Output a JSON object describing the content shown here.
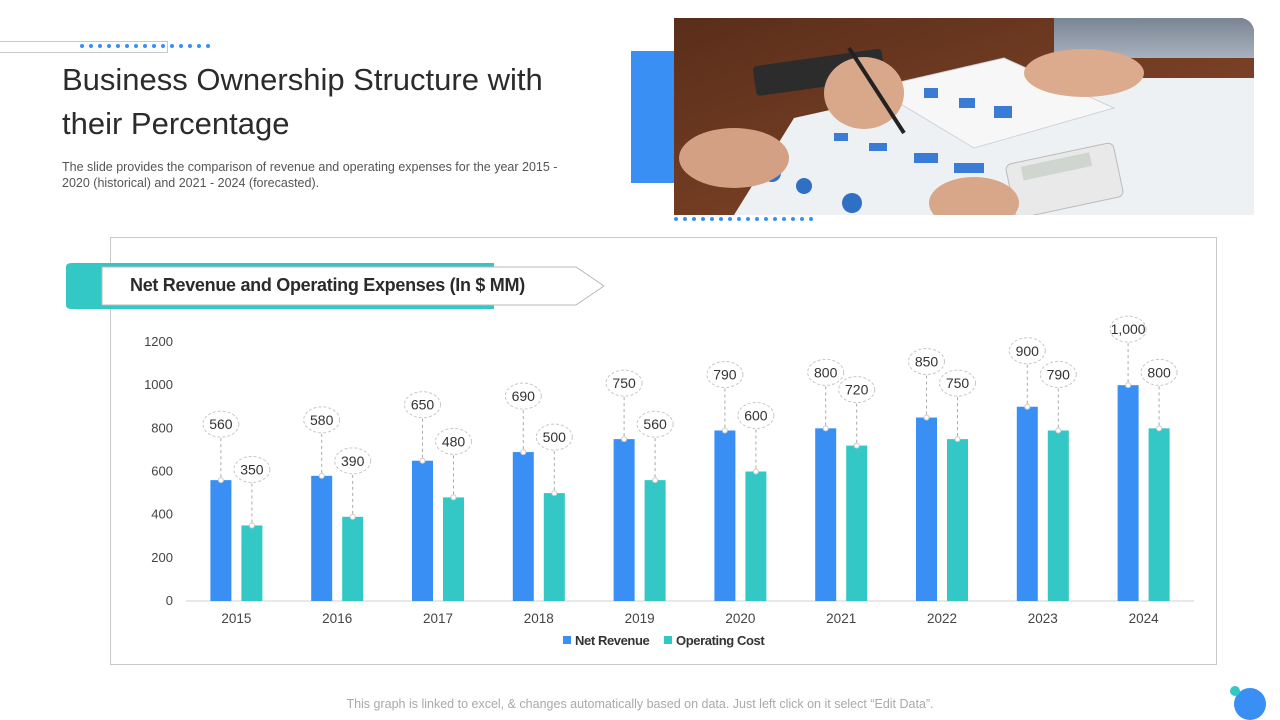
{
  "header": {
    "title": "Business Ownership Structure with their Percentage",
    "subtitle": "The slide provides the comparison of revenue and operating expenses for the year 2015 - 2020 (historical) and 2021 - 2024 (forecasted)."
  },
  "footer": {
    "note": "This graph is linked to excel, & changes automatically based on data. Just left click on it select “Edit Data”."
  },
  "colors": {
    "net_revenue": "#3a8ff5",
    "operating_cost": "#33c7c5",
    "accent_blue": "#3a8ff5",
    "accent_teal": "#33c7c5"
  },
  "chart_data": {
    "type": "bar",
    "title": "Net Revenue and Operating Expenses (In $ MM)",
    "categories": [
      "2015",
      "2016",
      "2017",
      "2018",
      "2019",
      "2020",
      "2021",
      "2022",
      "2023",
      "2024"
    ],
    "series": [
      {
        "name": "Net Revenue",
        "values": [
          560,
          580,
          650,
          690,
          750,
          790,
          800,
          850,
          900,
          1000
        ],
        "labels": [
          "560",
          "580",
          "650",
          "690",
          "750",
          "790",
          "800",
          "850",
          "900",
          "1,000"
        ]
      },
      {
        "name": "Operating Cost",
        "values": [
          350,
          390,
          480,
          500,
          560,
          600,
          720,
          750,
          790,
          800
        ],
        "labels": [
          "350",
          "390",
          "480",
          "500",
          "560",
          "600",
          "720",
          "750",
          "790",
          "800"
        ]
      }
    ],
    "yticks": [
      "0",
      "200",
      "400",
      "600",
      "800",
      "1000",
      "1200"
    ],
    "ylim": [
      0,
      1200
    ],
    "xlabel": "",
    "ylabel": "",
    "grid": false,
    "legend": "bottom"
  }
}
